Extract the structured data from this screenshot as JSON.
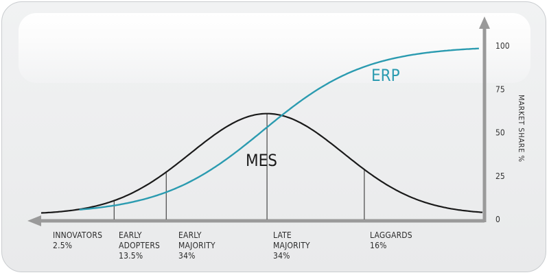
{
  "chart_data": {
    "type": "line",
    "title": "",
    "xlabel": "",
    "ylabel": "MARKET SHARE %",
    "ylim": [
      0,
      105
    ],
    "yticks": [
      "0",
      "25",
      "50",
      "75",
      "100"
    ],
    "grid": false,
    "colors": {
      "mes": "#1a1a1a",
      "erp": "#2b9bb0",
      "axis": "#9a9a9a",
      "divider": "#444444"
    },
    "x_range": [
      -3.25,
      3.1
    ],
    "series": [
      {
        "name": "MES",
        "kind": "adoption-bell",
        "mean": 0,
        "sd": 1.1,
        "points": [
          [
            -3.25,
            2.5
          ],
          [
            -2,
            12.4
          ],
          [
            -1,
            32
          ],
          [
            0,
            61
          ],
          [
            1,
            32
          ],
          [
            2,
            12.4
          ],
          [
            3,
            3
          ]
        ]
      },
      {
        "name": "ERP",
        "kind": "cumulative",
        "points": [
          [
            -2.7,
            3
          ],
          [
            -2,
            8
          ],
          [
            -1,
            18
          ],
          [
            0,
            59
          ],
          [
            1,
            87
          ],
          [
            2,
            98
          ],
          [
            3.05,
            100
          ]
        ]
      }
    ],
    "segments": [
      {
        "key": "innovators",
        "line1": "INNOVATORS",
        "line2": "2.5%",
        "line3": "",
        "boundary": -2.2
      },
      {
        "key": "early_adopters",
        "line1": "EARLY",
        "line2": "ADOPTERS",
        "line3": "13.5%",
        "boundary": -1.45
      },
      {
        "key": "early_majority",
        "line1": "EARLY",
        "line2": "MAJORITY",
        "line3": "34%",
        "boundary": 0
      },
      {
        "key": "late_majority",
        "line1": "LATE",
        "line2": "MAJORITY",
        "line3": "34%",
        "boundary": 1.4
      },
      {
        "key": "laggards",
        "line1": "LAGGARDS",
        "line2": "16%",
        "line3": "",
        "boundary": null
      }
    ]
  }
}
